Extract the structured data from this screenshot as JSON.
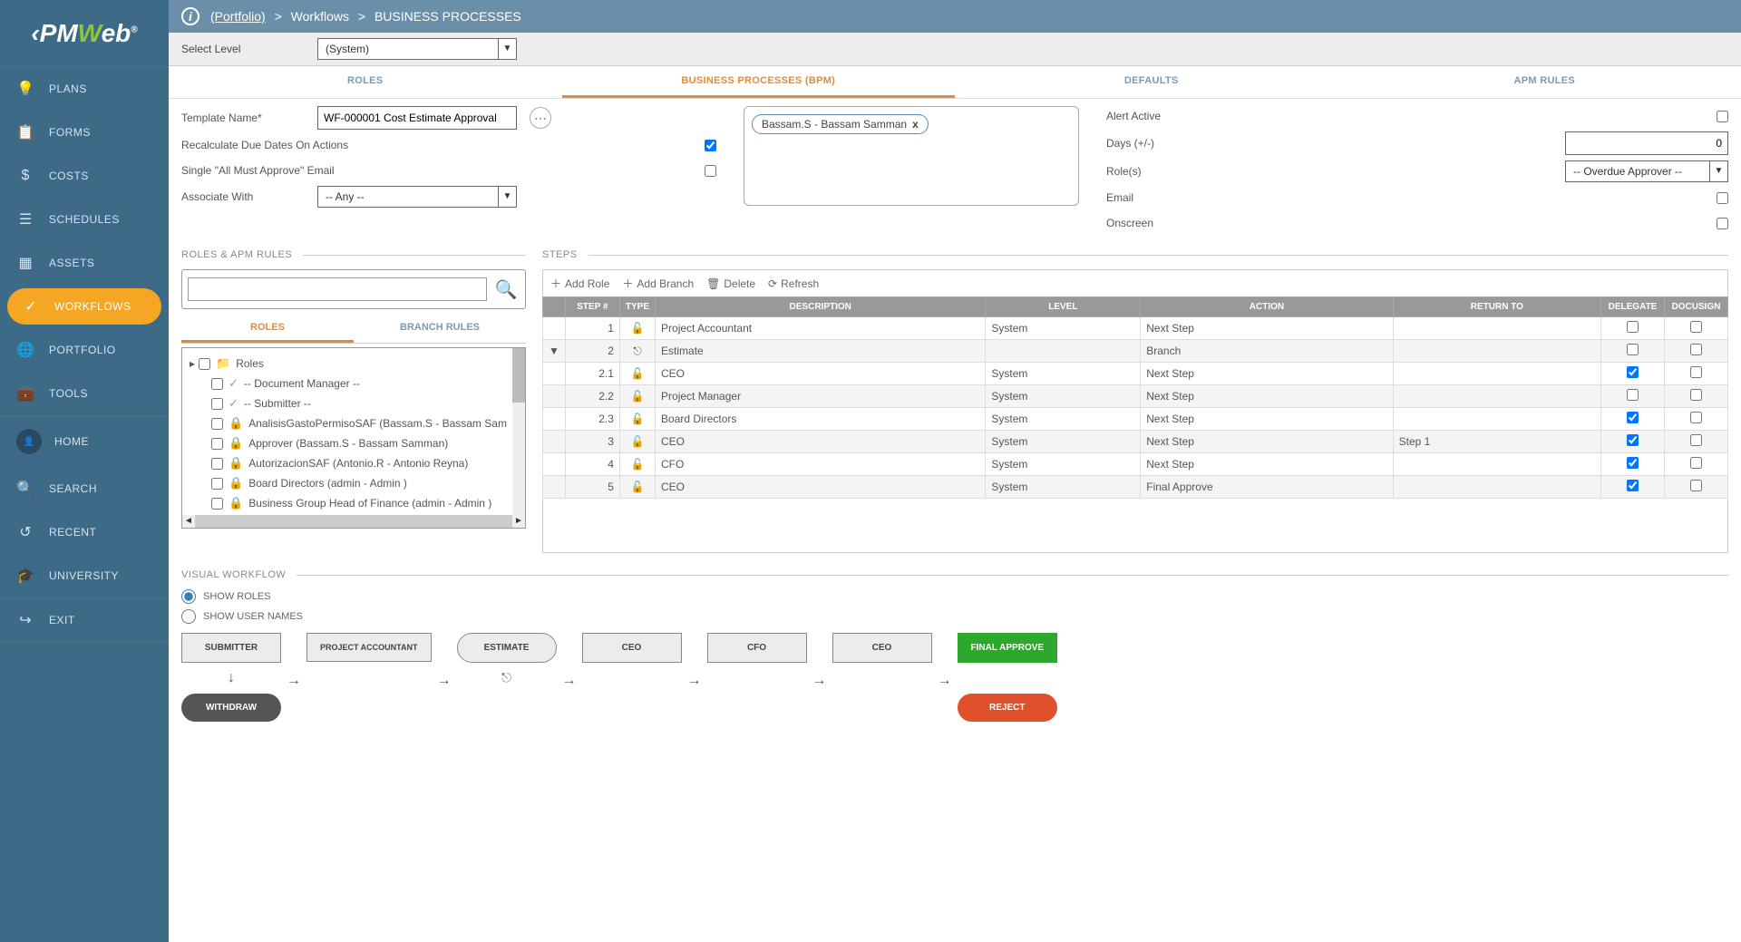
{
  "logo": {
    "pre": "‹PM",
    "highlight": "W",
    "post": "eb",
    "trademark": "®"
  },
  "sidebar": {
    "nav": [
      {
        "icon": "💡",
        "label": "PLANS"
      },
      {
        "icon": "📋",
        "label": "FORMS"
      },
      {
        "icon": "$",
        "label": "COSTS"
      },
      {
        "icon": "☰",
        "label": "SCHEDULES"
      },
      {
        "icon": "▦",
        "label": "ASSETS"
      },
      {
        "icon": "✓",
        "label": "WORKFLOWS",
        "active": true
      },
      {
        "icon": "🌐",
        "label": "PORTFOLIO"
      },
      {
        "icon": "💼",
        "label": "TOOLS"
      }
    ],
    "user": [
      {
        "icon": "👤",
        "label": "HOME",
        "avatar": true
      },
      {
        "icon": "🔍",
        "label": "SEARCH"
      },
      {
        "icon": "↺",
        "label": "RECENT"
      },
      {
        "icon": "🎓",
        "label": "UNIVERSITY"
      }
    ],
    "exit": {
      "icon": "↪",
      "label": "EXIT"
    }
  },
  "breadcrumb": {
    "portfolio": "(Portfolio)",
    "workflows": "Workflows",
    "page": "BUSINESS PROCESSES"
  },
  "level": {
    "label": "Select Level",
    "value": "(System)"
  },
  "tabs": [
    "ROLES",
    "BUSINESS PROCESSES (BPM)",
    "DEFAULTS",
    "APM RULES"
  ],
  "form": {
    "template_label": "Template Name*",
    "template_value": "WF-000001 Cost Estimate Approval",
    "recalc_label": "Recalculate Due Dates On Actions",
    "recalc_checked": true,
    "single_label": "Single \"All Must Approve\" Email",
    "single_checked": false,
    "assoc_label": "Associate With",
    "assoc_value": "-- Any --",
    "tag": "Bassam.S - Bassam Samman",
    "alert_label": "Alert Active",
    "days_label": "Days (+/-)",
    "days_value": "0",
    "roles_label": "Role(s)",
    "roles_value": "-- Overdue Approver --",
    "email_label": "Email",
    "onscreen_label": "Onscreen"
  },
  "sections": {
    "roles_apm": "ROLES & APM RULES",
    "steps": "STEPS",
    "visual": "VISUAL WORKFLOW"
  },
  "subtabs": [
    "ROLES",
    "BRANCH RULES"
  ],
  "tree": {
    "root": "Roles",
    "items": [
      {
        "icon": "check",
        "label": "-- Document Manager --"
      },
      {
        "icon": "check",
        "label": "-- Submitter --"
      },
      {
        "icon": "lock",
        "label": "AnalisisGastoPermisoSAF (Bassam.S - Bassam Sam"
      },
      {
        "icon": "lock",
        "label": "Approver (Bassam.S - Bassam Samman)"
      },
      {
        "icon": "lock",
        "label": "AutorizacionSAF (Antonio.R - Antonio Reyna)"
      },
      {
        "icon": "lock",
        "label": "Board Directors (admin - Admin )"
      },
      {
        "icon": "lock",
        "label": "Business Group Head of Finance (admin - Admin )"
      }
    ]
  },
  "toolbar": {
    "add_role": "Add Role",
    "add_branch": "Add Branch",
    "delete": "Delete",
    "refresh": "Refresh"
  },
  "steps_table": {
    "headers": [
      "STEP #",
      "TYPE",
      "DESCRIPTION",
      "LEVEL",
      "ACTION",
      "RETURN TO",
      "DELEGATE",
      "DOCUSIGN"
    ],
    "rows": [
      {
        "expand": "",
        "step": "1",
        "type": "lock",
        "desc": "Project Accountant",
        "level": "System",
        "action": "Next Step",
        "return": "",
        "delegate": false,
        "docusign": false
      },
      {
        "expand": "▼",
        "step": "2",
        "type": "branch",
        "desc": "Estimate",
        "level": "",
        "action": "Branch",
        "return": "",
        "delegate": false,
        "docusign": false
      },
      {
        "expand": "",
        "step": "2.1",
        "type": "lock",
        "desc": "CEO",
        "level": "System",
        "action": "Next Step",
        "return": "",
        "delegate": true,
        "docusign": false
      },
      {
        "expand": "",
        "step": "2.2",
        "type": "lock",
        "desc": "Project Manager",
        "level": "System",
        "action": "Next Step",
        "return": "",
        "delegate": false,
        "docusign": false
      },
      {
        "expand": "",
        "step": "2.3",
        "type": "lock",
        "desc": "Board Directors",
        "level": "System",
        "action": "Next Step",
        "return": "",
        "delegate": true,
        "docusign": false
      },
      {
        "expand": "",
        "step": "3",
        "type": "lock",
        "desc": "CEO",
        "level": "System",
        "action": "Next Step",
        "return": "Step 1",
        "delegate": true,
        "docusign": false
      },
      {
        "expand": "",
        "step": "4",
        "type": "lock",
        "desc": "CFO",
        "level": "System",
        "action": "Next Step",
        "return": "",
        "delegate": true,
        "docusign": false
      },
      {
        "expand": "",
        "step": "5",
        "type": "lock",
        "desc": "CEO",
        "level": "System",
        "action": "Final Approve",
        "return": "",
        "delegate": true,
        "docusign": false
      }
    ]
  },
  "visual": {
    "show_roles": "SHOW ROLES",
    "show_users": "SHOW USER NAMES",
    "nodes": {
      "submitter": "SUBMITTER",
      "withdraw": "WITHDRAW",
      "pa": "PROJECT ACCOUNTANT",
      "estimate": "ESTIMATE",
      "ceo1": "CEO",
      "cfo": "CFO",
      "ceo2": "CEO",
      "final": "FINAL APPROVE",
      "reject": "REJECT"
    }
  }
}
